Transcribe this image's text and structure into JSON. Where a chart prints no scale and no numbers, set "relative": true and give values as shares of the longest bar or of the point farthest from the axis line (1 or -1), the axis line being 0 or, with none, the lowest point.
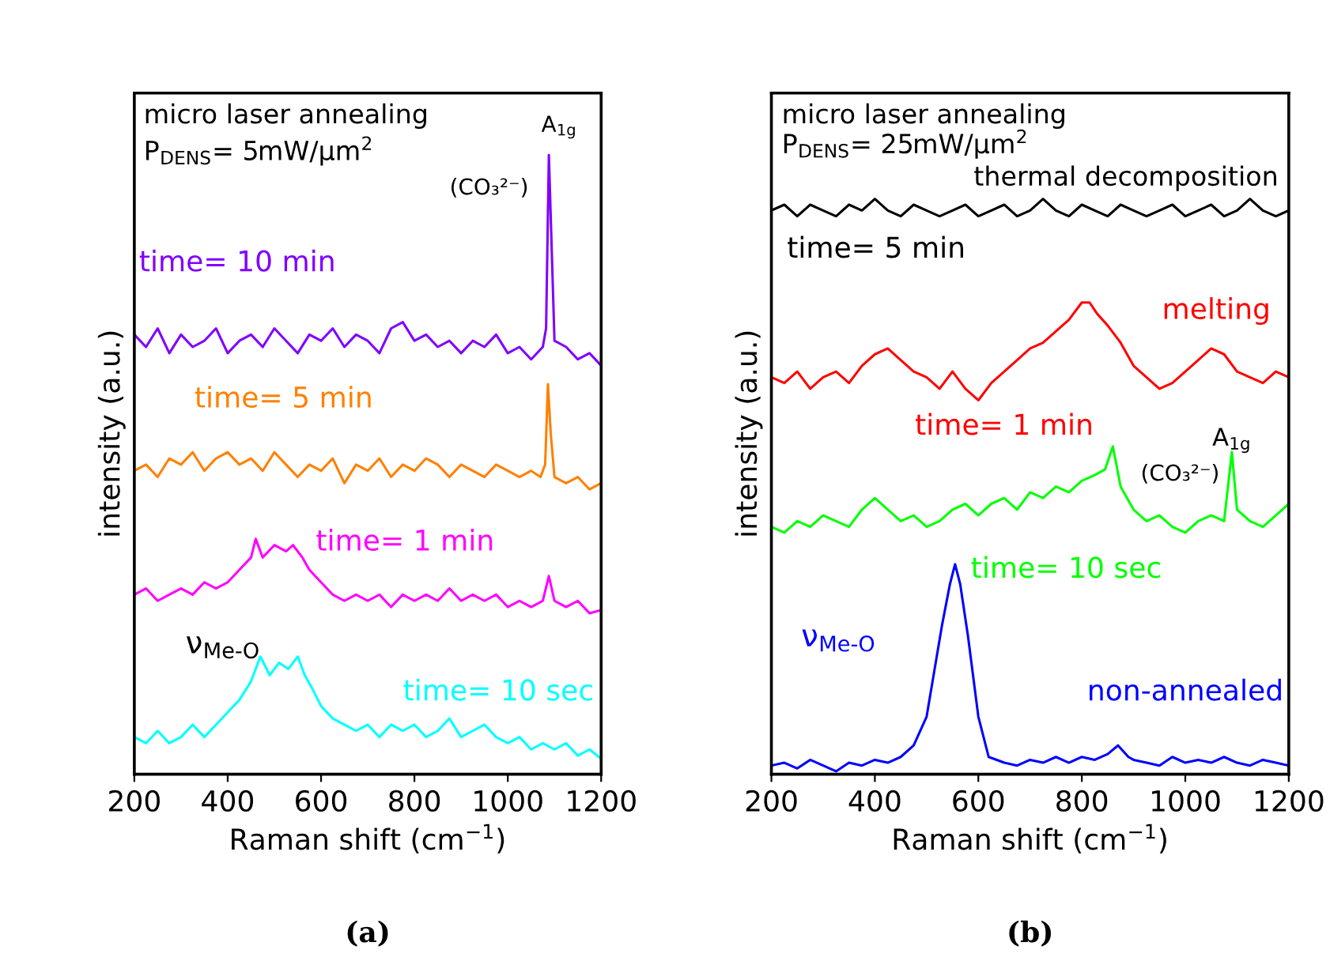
{
  "chart_data": [
    {
      "type": "line",
      "relative": true,
      "xlabel": "Raman shift (cm$^{−1}$)",
      "ylabel": "intensity (a.u.)",
      "xlim": [
        200,
        1200
      ],
      "xticks": [
        200,
        400,
        600,
        800,
        1000,
        1200
      ],
      "grid": false,
      "legend": false,
      "tick_labels": "x",
      "annotations": [
        "micro laser annealing",
        "P$_{DENS}$= 5mW/μm$^{2}$",
        "A$_{1g}$",
        "(CO₃²⁻)",
        "ν$_{Me-O}$",
        "(a)"
      ],
      "series": [
        {
          "name": "time= 10 min",
          "color": "#8000ff",
          "x": [
            200,
            225,
            250,
            275,
            300,
            325,
            350,
            375,
            400,
            425,
            450,
            475,
            500,
            525,
            550,
            575,
            600,
            625,
            650,
            675,
            700,
            725,
            750,
            775,
            800,
            825,
            850,
            875,
            900,
            925,
            950,
            975,
            1000,
            1025,
            1050,
            1075,
            1082,
            1088,
            1094,
            1100,
            1125,
            1150,
            1175,
            1200
          ],
          "values": [
            0.71,
            0.69,
            0.72,
            0.68,
            0.71,
            0.69,
            0.7,
            0.72,
            0.68,
            0.7,
            0.71,
            0.69,
            0.72,
            0.7,
            0.68,
            0.71,
            0.7,
            0.72,
            0.69,
            0.71,
            0.7,
            0.68,
            0.72,
            0.73,
            0.7,
            0.71,
            0.69,
            0.7,
            0.68,
            0.7,
            0.69,
            0.71,
            0.68,
            0.69,
            0.67,
            0.69,
            0.72,
            1.0,
            0.85,
            0.7,
            0.69,
            0.67,
            0.68,
            0.66
          ]
        },
        {
          "name": "time= 5 min",
          "color": "#ff8000",
          "x": [
            200,
            225,
            250,
            275,
            300,
            325,
            350,
            375,
            400,
            425,
            450,
            475,
            500,
            525,
            550,
            575,
            600,
            625,
            650,
            675,
            700,
            725,
            750,
            775,
            800,
            825,
            850,
            875,
            900,
            925,
            950,
            975,
            1000,
            1025,
            1050,
            1070,
            1080,
            1086,
            1092,
            1100,
            1125,
            1150,
            1175,
            1200
          ],
          "values": [
            0.49,
            0.5,
            0.48,
            0.51,
            0.5,
            0.52,
            0.49,
            0.51,
            0.52,
            0.5,
            0.51,
            0.49,
            0.52,
            0.5,
            0.48,
            0.5,
            0.49,
            0.51,
            0.47,
            0.5,
            0.49,
            0.51,
            0.48,
            0.5,
            0.49,
            0.51,
            0.5,
            0.48,
            0.5,
            0.49,
            0.48,
            0.5,
            0.49,
            0.48,
            0.49,
            0.48,
            0.5,
            0.63,
            0.55,
            0.48,
            0.47,
            0.48,
            0.46,
            0.47
          ]
        },
        {
          "name": "time= 1 min",
          "color": "#ff00ff",
          "x": [
            200,
            225,
            250,
            275,
            300,
            325,
            350,
            375,
            400,
            425,
            450,
            460,
            475,
            500,
            525,
            540,
            560,
            575,
            600,
            625,
            650,
            675,
            700,
            725,
            750,
            775,
            800,
            825,
            850,
            875,
            900,
            925,
            950,
            975,
            1000,
            1025,
            1050,
            1075,
            1088,
            1100,
            1125,
            1150,
            1175,
            1200
          ],
          "values": [
            0.29,
            0.3,
            0.28,
            0.29,
            0.3,
            0.29,
            0.31,
            0.3,
            0.31,
            0.33,
            0.35,
            0.38,
            0.35,
            0.37,
            0.36,
            0.37,
            0.35,
            0.33,
            0.31,
            0.29,
            0.28,
            0.29,
            0.28,
            0.29,
            0.27,
            0.29,
            0.28,
            0.29,
            0.28,
            0.3,
            0.28,
            0.29,
            0.28,
            0.29,
            0.27,
            0.28,
            0.27,
            0.28,
            0.32,
            0.28,
            0.27,
            0.28,
            0.26,
            0.265
          ]
        },
        {
          "name": "time= 10 sec",
          "color": "#00ffff",
          "x": [
            200,
            225,
            250,
            275,
            300,
            325,
            350,
            375,
            400,
            425,
            450,
            470,
            490,
            510,
            530,
            550,
            565,
            580,
            600,
            625,
            650,
            675,
            700,
            725,
            750,
            775,
            800,
            825,
            850,
            875,
            900,
            925,
            950,
            975,
            1000,
            1025,
            1050,
            1075,
            1100,
            1125,
            1150,
            1175,
            1200
          ],
          "values": [
            0.06,
            0.05,
            0.07,
            0.05,
            0.06,
            0.08,
            0.06,
            0.08,
            0.1,
            0.12,
            0.15,
            0.19,
            0.16,
            0.18,
            0.17,
            0.19,
            0.16,
            0.14,
            0.11,
            0.09,
            0.08,
            0.07,
            0.08,
            0.06,
            0.08,
            0.07,
            0.08,
            0.06,
            0.07,
            0.09,
            0.06,
            0.07,
            0.08,
            0.06,
            0.05,
            0.06,
            0.04,
            0.05,
            0.04,
            0.05,
            0.03,
            0.04,
            0.025
          ]
        }
      ]
    },
    {
      "type": "line",
      "relative": true,
      "xlabel": "Raman shift (cm$^{−1}$)",
      "ylabel": "intensity (a.u.)",
      "xlim": [
        200,
        1200
      ],
      "xticks": [
        200,
        400,
        600,
        800,
        1000,
        1200
      ],
      "grid": false,
      "legend": false,
      "tick_labels": "x",
      "annotations": [
        "micro laser annealing",
        "P$_{DENS}$= 25mW/μm$^{2}$",
        "thermal decomposition",
        "melting",
        "A$_{1g}$",
        "(CO₃²⁻)",
        "ν$_{Me-O}$",
        "(b)"
      ],
      "series": [
        {
          "name": "time= 5 min",
          "color": "#000000",
          "x": [
            200,
            225,
            250,
            275,
            300,
            325,
            350,
            375,
            400,
            425,
            450,
            475,
            500,
            525,
            550,
            575,
            600,
            625,
            650,
            675,
            700,
            725,
            750,
            775,
            800,
            825,
            850,
            875,
            900,
            925,
            950,
            975,
            1000,
            1025,
            1050,
            1075,
            1100,
            1125,
            1150,
            1175,
            1200
          ],
          "values": [
            0.98,
            0.99,
            0.97,
            0.99,
            0.98,
            0.97,
            0.99,
            0.98,
            1.0,
            0.98,
            0.97,
            0.99,
            0.98,
            0.97,
            0.98,
            0.99,
            0.97,
            0.98,
            0.99,
            0.97,
            0.98,
            1.0,
            0.98,
            0.97,
            0.99,
            0.98,
            0.97,
            0.99,
            0.98,
            0.97,
            0.98,
            0.99,
            0.97,
            0.98,
            0.99,
            0.97,
            0.98,
            1.0,
            0.98,
            0.97,
            0.98
          ]
        },
        {
          "name": "time= 1 min",
          "color": "#ff0000",
          "x": [
            200,
            225,
            250,
            275,
            300,
            325,
            350,
            375,
            400,
            425,
            450,
            475,
            500,
            525,
            550,
            575,
            600,
            625,
            650,
            675,
            700,
            725,
            750,
            775,
            800,
            815,
            830,
            850,
            875,
            900,
            925,
            950,
            975,
            1000,
            1025,
            1050,
            1075,
            1100,
            1125,
            1150,
            1175,
            1200
          ],
          "values": [
            0.69,
            0.68,
            0.7,
            0.67,
            0.69,
            0.7,
            0.68,
            0.71,
            0.73,
            0.74,
            0.72,
            0.7,
            0.69,
            0.67,
            0.7,
            0.67,
            0.65,
            0.68,
            0.7,
            0.72,
            0.74,
            0.75,
            0.77,
            0.79,
            0.82,
            0.82,
            0.8,
            0.78,
            0.75,
            0.71,
            0.69,
            0.67,
            0.68,
            0.7,
            0.72,
            0.74,
            0.73,
            0.7,
            0.69,
            0.68,
            0.7,
            0.69
          ]
        },
        {
          "name": "time= 10 sec",
          "color": "#00ff00",
          "x": [
            200,
            225,
            250,
            275,
            300,
            325,
            350,
            375,
            400,
            425,
            450,
            475,
            500,
            525,
            550,
            575,
            600,
            625,
            650,
            675,
            700,
            725,
            750,
            775,
            800,
            825,
            845,
            860,
            875,
            900,
            925,
            950,
            975,
            1000,
            1025,
            1050,
            1075,
            1090,
            1100,
            1125,
            1150,
            1175,
            1200
          ],
          "values": [
            0.43,
            0.42,
            0.44,
            0.43,
            0.45,
            0.44,
            0.43,
            0.46,
            0.48,
            0.46,
            0.44,
            0.45,
            0.43,
            0.44,
            0.46,
            0.47,
            0.45,
            0.47,
            0.48,
            0.46,
            0.49,
            0.48,
            0.5,
            0.49,
            0.51,
            0.52,
            0.53,
            0.57,
            0.5,
            0.46,
            0.44,
            0.45,
            0.43,
            0.42,
            0.44,
            0.45,
            0.44,
            0.56,
            0.46,
            0.44,
            0.43,
            0.45,
            0.47
          ]
        },
        {
          "name": "non-annealed",
          "color": "#0000ff",
          "x": [
            200,
            225,
            250,
            275,
            300,
            325,
            350,
            375,
            400,
            425,
            450,
            475,
            500,
            515,
            530,
            545,
            555,
            565,
            580,
            600,
            620,
            650,
            675,
            700,
            725,
            750,
            775,
            800,
            825,
            850,
            870,
            890,
            900,
            925,
            950,
            975,
            1000,
            1025,
            1050,
            1075,
            1100,
            1125,
            1150,
            1175,
            1200
          ],
          "values": [
            0.015,
            0.02,
            0.01,
            0.025,
            0.015,
            0.005,
            0.02,
            0.015,
            0.025,
            0.02,
            0.03,
            0.05,
            0.1,
            0.18,
            0.26,
            0.33,
            0.365,
            0.33,
            0.24,
            0.1,
            0.03,
            0.02,
            0.015,
            0.025,
            0.02,
            0.03,
            0.02,
            0.03,
            0.025,
            0.035,
            0.05,
            0.03,
            0.025,
            0.02,
            0.015,
            0.03,
            0.02,
            0.025,
            0.02,
            0.03,
            0.02,
            0.015,
            0.025,
            0.02,
            0.015
          ]
        }
      ]
    }
  ]
}
